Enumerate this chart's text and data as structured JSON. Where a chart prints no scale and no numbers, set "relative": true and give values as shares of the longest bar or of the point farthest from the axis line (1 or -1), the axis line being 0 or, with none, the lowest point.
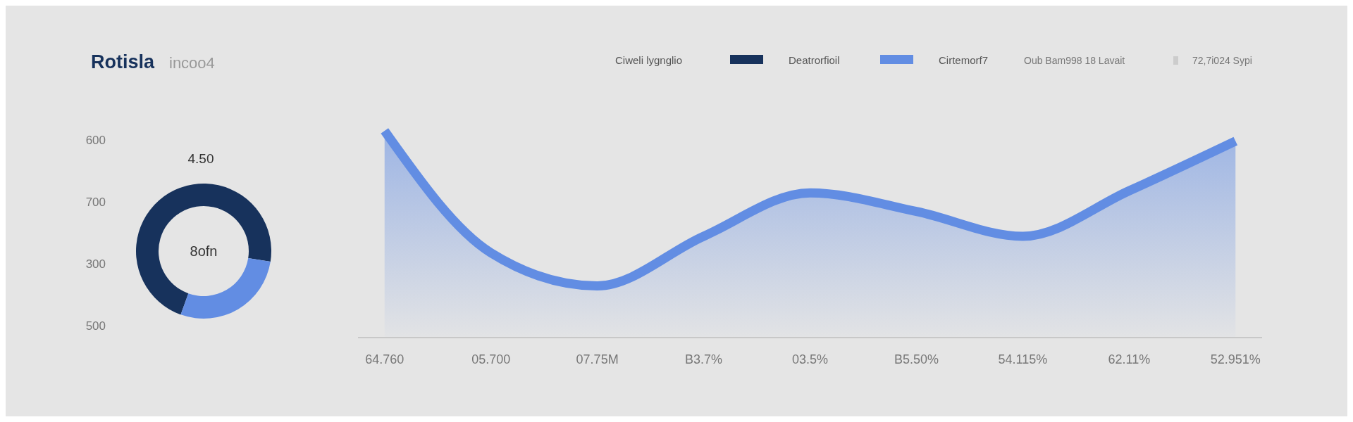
{
  "chart_data": [
    {
      "type": "donut",
      "title": "Rotisla",
      "subtitle": "incoo4",
      "legend_title": "Ciweli lygnglio",
      "legend": "top right",
      "categories": [
        "Deatrorfioil",
        "Cirtemorf7"
      ],
      "values": [
        72,
        28
      ],
      "colors": [
        "#17325c",
        "#628de3"
      ],
      "annotations": [
        "600",
        "700",
        "300",
        "500",
        "4.50",
        "8ofn",
        "Oub Bam998 18 Lavait",
        "72,7i024 Sypi"
      ]
    },
    {
      "type": "area",
      "relative": true,
      "categories": [
        "64.760",
        "05.700",
        "07.75M",
        "B3.7%",
        "03.5%",
        "B5.50%",
        "54.115%",
        "62.11%",
        "52.951%"
      ],
      "series": [
        {
          "color": "#628de3",
          "values": [
            1,
            0.41,
            0.25,
            0.49,
            0.7,
            0.61,
            0.49,
            0.71,
            0.95
          ]
        }
      ]
    }
  ]
}
